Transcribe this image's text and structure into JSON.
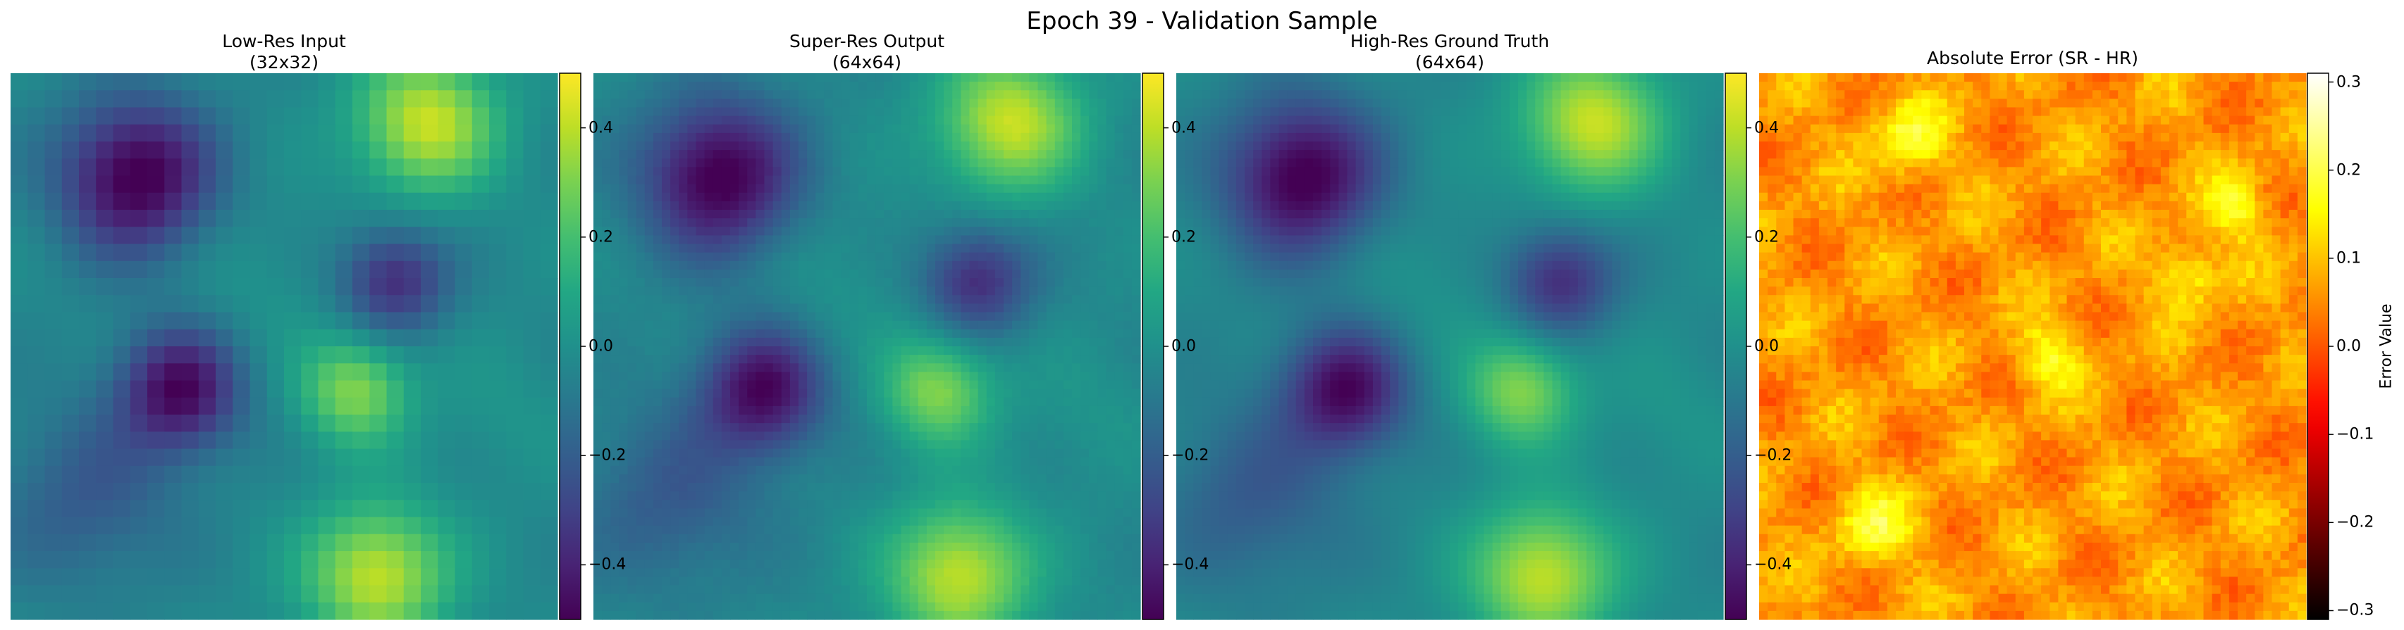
{
  "figure": {
    "suptitle": "Epoch 39 - Validation Sample"
  },
  "chart_data": [
    {
      "type": "heatmap",
      "title_line1": "Low-Res Input",
      "title_line2": "(32x32)",
      "grid_size": 32,
      "colormap": "viridis",
      "colorbar": {
        "range": [
          -0.5,
          0.5
        ],
        "ticks": [
          0.4,
          0.2,
          0.0,
          -0.2,
          -0.4
        ],
        "tick_labels": [
          "0.4",
          "0.2",
          "0.0",
          "−0.2",
          "−0.4"
        ]
      },
      "axes_visible": false
    },
    {
      "type": "heatmap",
      "title_line1": "Super-Res Output",
      "title_line2": "(64x64)",
      "grid_size": 64,
      "colormap": "viridis",
      "colorbar": {
        "range": [
          -0.5,
          0.5
        ],
        "ticks": [
          0.4,
          0.2,
          0.0,
          -0.2,
          -0.4
        ],
        "tick_labels": [
          "0.4",
          "0.2",
          "0.0",
          "−0.2",
          "−0.4"
        ]
      },
      "axes_visible": false
    },
    {
      "type": "heatmap",
      "title_line1": "High-Res Ground Truth",
      "title_line2": "(64x64)",
      "grid_size": 64,
      "colormap": "viridis",
      "colorbar": {
        "range": [
          -0.5,
          0.5
        ],
        "ticks": [
          0.4,
          0.2,
          0.0,
          -0.2,
          -0.4
        ],
        "tick_labels": [
          "0.4",
          "0.2",
          "0.0",
          "−0.2",
          "−0.4"
        ]
      },
      "axes_visible": false
    },
    {
      "type": "heatmap",
      "title_line1": "Absolute Error (SR - HR)",
      "title_line2": "",
      "grid_size": 64,
      "colormap": "hot",
      "colorbar": {
        "range": [
          -0.31,
          0.31
        ],
        "ticks": [
          0.3,
          0.2,
          0.1,
          0.0,
          -0.1,
          -0.2,
          -0.3
        ],
        "tick_labels": [
          "0.3",
          "0.2",
          "0.1",
          "0.0",
          "−0.1",
          "−0.2",
          "−0.3"
        ],
        "label": "Error Value"
      },
      "axes_visible": false
    }
  ]
}
